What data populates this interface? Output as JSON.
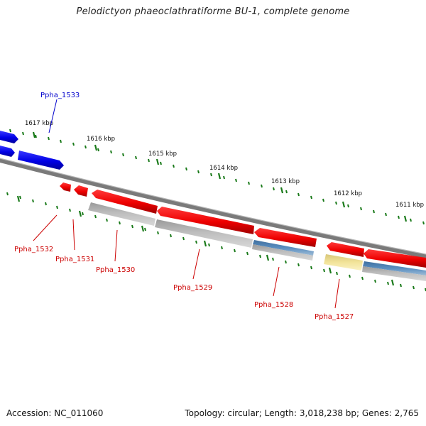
{
  "title": "Pelodictyon phaeoclathratiforme BU-1, complete genome",
  "accession_text": "Accession: NC_011060",
  "summary_text": "Topology: circular; Length: 3,018,238 bp; Genes: 2,765",
  "kbp_labels": [
    "1617 kbp",
    "1616 kbp",
    "1615 kbp",
    "1614 kbp",
    "1613 kbp",
    "1612 kbp",
    "1611 kbp"
  ],
  "genes": [
    {
      "name": "Ppha_1533",
      "strand": "forward",
      "color": "#0000ee"
    },
    {
      "name": "Ppha_1532",
      "strand": "reverse",
      "color": "#ee0000"
    },
    {
      "name": "Ppha_1531",
      "strand": "reverse",
      "color": "#ee0000"
    },
    {
      "name": "Ppha_1530",
      "strand": "reverse",
      "color": "#ee0000"
    },
    {
      "name": "Ppha_1529",
      "strand": "reverse",
      "color": "#ee0000"
    },
    {
      "name": "Ppha_1528",
      "strand": "reverse",
      "color": "#ee0000"
    },
    {
      "name": "Ppha_1527",
      "strand": "reverse",
      "color": "#ee0000"
    }
  ],
  "colors": {
    "forward_gene": "#0000ee",
    "reverse_gene": "#ee0000",
    "backbone": "#808080",
    "ticks": "#1a7a1a",
    "feature_gray": "#bdbdbd",
    "feature_blue": "#5a8ec0",
    "feature_yellow": "#f2e49a"
  }
}
